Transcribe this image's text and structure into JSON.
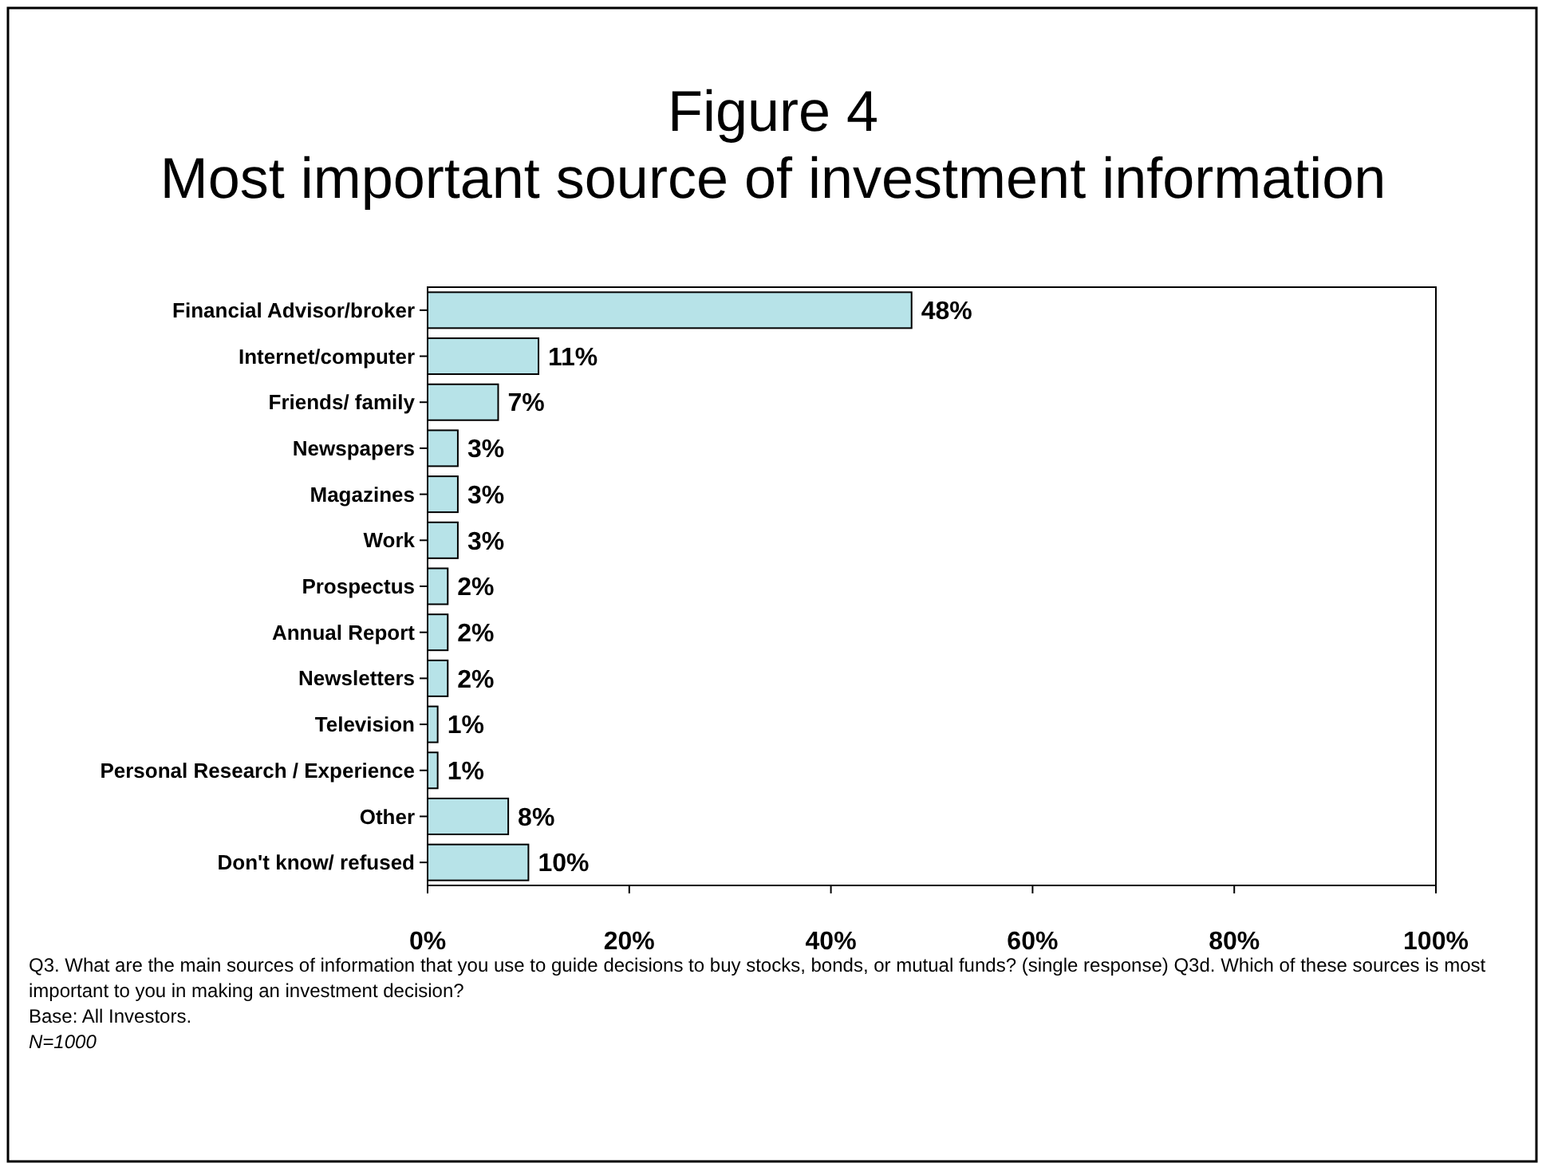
{
  "chart_data": {
    "type": "bar",
    "orientation": "horizontal",
    "title": "Figure 4",
    "subtitle": "Most important source of investment information",
    "categories": [
      "Financial Advisor/broker",
      "Internet/computer",
      "Friends/ family",
      "Newspapers",
      "Magazines",
      "Work",
      "Prospectus",
      "Annual Report",
      "Newsletters",
      "Television",
      "Personal Research / Experience",
      "Other",
      "Don't know/ refused"
    ],
    "values": [
      48,
      11,
      7,
      3,
      3,
      3,
      2,
      2,
      2,
      1,
      1,
      8,
      10
    ],
    "value_labels": [
      "48%",
      "11%",
      "7%",
      "3%",
      "3%",
      "3%",
      "2%",
      "2%",
      "2%",
      "1%",
      "1%",
      "8%",
      "10%"
    ],
    "color": "#b7e3e8",
    "xlim": [
      0,
      100
    ],
    "xticks": [
      {
        "value": 0,
        "label": "0%"
      },
      {
        "value": 20,
        "label": "20%"
      },
      {
        "value": 40,
        "label": "40%"
      },
      {
        "value": 60,
        "label": "60%"
      },
      {
        "value": 80,
        "label": "80%"
      },
      {
        "value": 100,
        "label": "100%"
      }
    ],
    "grid": false,
    "annotations": [
      "Q3. What are the main sources of information that you use to guide decisions to buy stocks, bonds, or mutual funds? (single response)  Q3d. Which of these sources is most important to you in making an investment decision?",
      "Base: All Investors.",
      "N=1000"
    ]
  }
}
